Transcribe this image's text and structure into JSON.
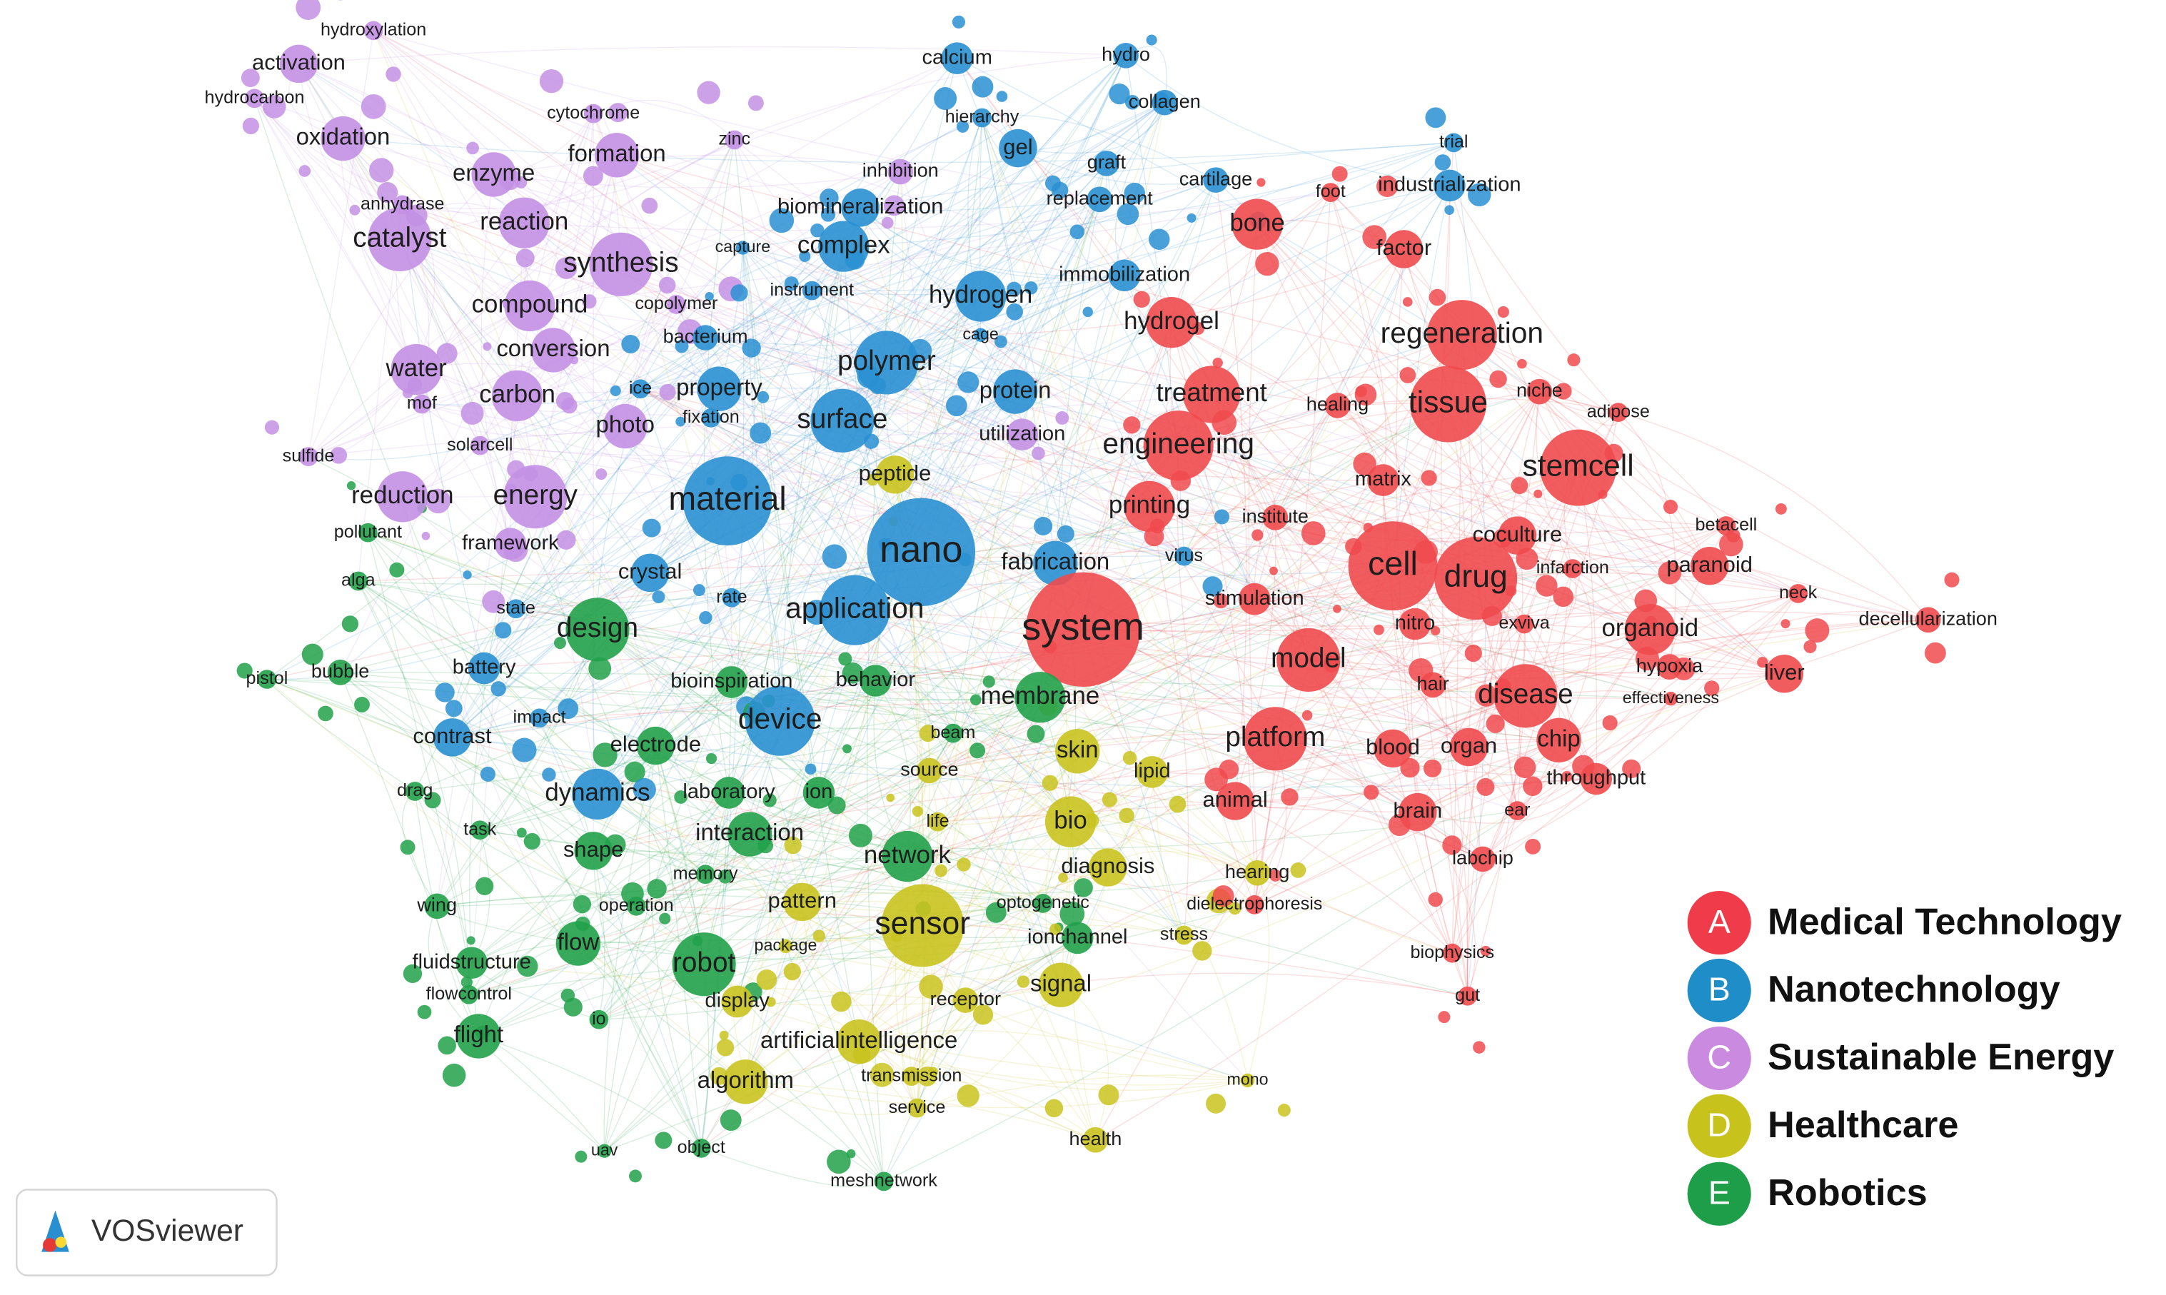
{
  "legend": [
    {
      "letter": "A",
      "label": "Medical Technology",
      "color": "#f03c4a"
    },
    {
      "letter": "B",
      "label": "Nanotechnology",
      "color": "#1f8ec8"
    },
    {
      "letter": "C",
      "label": "Sustainable Energy",
      "color": "#c98ae0"
    },
    {
      "letter": "D",
      "label": "Healthcare",
      "color": "#c8c21c"
    },
    {
      "letter": "E",
      "label": "Robotics",
      "color": "#1f9e4a"
    }
  ],
  "logo": "VOSviewer",
  "nodes": [
    {
      "label": "hydroxylation",
      "cluster": 2
    },
    {
      "label": "activation",
      "cluster": 2
    },
    {
      "label": "hydrocarbon",
      "cluster": 2
    },
    {
      "label": "oxidation",
      "cluster": 2
    },
    {
      "label": "cytochrome",
      "cluster": 2
    },
    {
      "label": "zinc",
      "cluster": 2
    },
    {
      "label": "formation",
      "cluster": 2
    },
    {
      "label": "enzyme",
      "cluster": 2
    },
    {
      "label": "anhydrase",
      "cluster": 2
    },
    {
      "label": "reaction",
      "cluster": 2
    },
    {
      "label": "catalyst",
      "cluster": 2
    },
    {
      "label": "synthesis",
      "cluster": 2
    },
    {
      "label": "compound",
      "cluster": 2
    },
    {
      "label": "copolymer",
      "cluster": 2
    },
    {
      "label": "conversion",
      "cluster": 2
    },
    {
      "label": "water",
      "cluster": 2
    },
    {
      "label": "carbon",
      "cluster": 2
    },
    {
      "label": "mof",
      "cluster": 2
    },
    {
      "label": "sulfide",
      "cluster": 2
    },
    {
      "label": "solarcell",
      "cluster": 2
    },
    {
      "label": "reduction",
      "cluster": 2
    },
    {
      "label": "energy",
      "cluster": 2
    },
    {
      "label": "pollutant",
      "cluster": 4
    },
    {
      "label": "framework",
      "cluster": 2
    },
    {
      "label": "alga",
      "cluster": 4
    },
    {
      "label": "crystal",
      "cluster": 1
    },
    {
      "label": "state",
      "cluster": 1
    },
    {
      "label": "design",
      "cluster": 4
    },
    {
      "label": "battery",
      "cluster": 1
    },
    {
      "label": "pistol",
      "cluster": 4
    },
    {
      "label": "bubble",
      "cluster": 4
    },
    {
      "label": "impact",
      "cluster": 1
    },
    {
      "label": "contrast",
      "cluster": 1
    },
    {
      "label": "electrode",
      "cluster": 4
    },
    {
      "label": "drag",
      "cluster": 4
    },
    {
      "label": "dynamics",
      "cluster": 1
    },
    {
      "label": "task",
      "cluster": 4
    },
    {
      "label": "shape",
      "cluster": 4
    },
    {
      "label": "wing",
      "cluster": 4
    },
    {
      "label": "operation",
      "cluster": 4
    },
    {
      "label": "memory",
      "cluster": 4
    },
    {
      "label": "flow",
      "cluster": 4
    },
    {
      "label": "fluidstructure",
      "cluster": 4
    },
    {
      "label": "flowcontrol",
      "cluster": 4
    },
    {
      "label": "robot",
      "cluster": 4
    },
    {
      "label": "flight",
      "cluster": 4
    },
    {
      "label": "io",
      "cluster": 4
    },
    {
      "label": "package",
      "cluster": 3
    },
    {
      "label": "display",
      "cluster": 3
    },
    {
      "label": "pattern",
      "cluster": 3
    },
    {
      "label": "artificialintelligence",
      "cluster": 3
    },
    {
      "label": "algorithm",
      "cluster": 3
    },
    {
      "label": "transmission",
      "cluster": 3
    },
    {
      "label": "service",
      "cluster": 3
    },
    {
      "label": "uav",
      "cluster": 4
    },
    {
      "label": "object",
      "cluster": 4
    },
    {
      "label": "meshnetwork",
      "cluster": 4
    },
    {
      "label": "health",
      "cluster": 3
    },
    {
      "label": "mono",
      "cluster": 3
    },
    {
      "label": "sensor",
      "cluster": 3
    },
    {
      "label": "network",
      "cluster": 4
    },
    {
      "label": "interaction",
      "cluster": 4
    },
    {
      "label": "laboratory",
      "cluster": 4
    },
    {
      "label": "ion",
      "cluster": 4
    },
    {
      "label": "life",
      "cluster": 3
    },
    {
      "label": "source",
      "cluster": 3
    },
    {
      "label": "beam",
      "cluster": 4
    },
    {
      "label": "device",
      "cluster": 1
    },
    {
      "label": "bioinspiration",
      "cluster": 4
    },
    {
      "label": "behavior",
      "cluster": 4
    },
    {
      "label": "application",
      "cluster": 1
    },
    {
      "label": "rate",
      "cluster": 1
    },
    {
      "label": "material",
      "cluster": 1
    },
    {
      "label": "nano",
      "cluster": 1
    },
    {
      "label": "fabrication",
      "cluster": 1
    },
    {
      "label": "system",
      "cluster": 0
    },
    {
      "label": "membrane",
      "cluster": 4
    },
    {
      "label": "skin",
      "cluster": 3
    },
    {
      "label": "lipid",
      "cluster": 3
    },
    {
      "label": "bio",
      "cluster": 3
    },
    {
      "label": "diagnosis",
      "cluster": 3
    },
    {
      "label": "optogenetic",
      "cluster": 4
    },
    {
      "label": "ionchannel",
      "cluster": 4
    },
    {
      "label": "signal",
      "cluster": 3
    },
    {
      "label": "receptor",
      "cluster": 3
    },
    {
      "label": "stress",
      "cluster": 3
    },
    {
      "label": "dielectrophoresis",
      "cluster": 0
    },
    {
      "label": "hearing",
      "cluster": 3
    },
    {
      "label": "animal",
      "cluster": 0
    },
    {
      "label": "platform",
      "cluster": 0
    },
    {
      "label": "model",
      "cluster": 0
    },
    {
      "label": "stimulation",
      "cluster": 0
    },
    {
      "label": "virus",
      "cluster": 1
    },
    {
      "label": "institute",
      "cluster": 0
    },
    {
      "label": "printing",
      "cluster": 0
    },
    {
      "label": "peptide",
      "cluster": 3
    },
    {
      "label": "photo",
      "cluster": 2
    },
    {
      "label": "fixation",
      "cluster": 1
    },
    {
      "label": "ice",
      "cluster": 1
    },
    {
      "label": "property",
      "cluster": 1
    },
    {
      "label": "bacterium",
      "cluster": 1
    },
    {
      "label": "polymer",
      "cluster": 1
    },
    {
      "label": "surface",
      "cluster": 1
    },
    {
      "label": "utilization",
      "cluster": 2
    },
    {
      "label": "protein",
      "cluster": 1
    },
    {
      "label": "engineering",
      "cluster": 0
    },
    {
      "label": "treatment",
      "cluster": 0
    },
    {
      "label": "hydrogel",
      "cluster": 0
    },
    {
      "label": "hydrogen",
      "cluster": 1
    },
    {
      "label": "cage",
      "cluster": 1
    },
    {
      "label": "instrument",
      "cluster": 1
    },
    {
      "label": "capture",
      "cluster": 1
    },
    {
      "label": "complex",
      "cluster": 1
    },
    {
      "label": "biomineralization",
      "cluster": 1
    },
    {
      "label": "inhibition",
      "cluster": 2
    },
    {
      "label": "hierarchy",
      "cluster": 1
    },
    {
      "label": "calcium",
      "cluster": 1
    },
    {
      "label": "hydro",
      "cluster": 1
    },
    {
      "label": "collagen",
      "cluster": 1
    },
    {
      "label": "gel",
      "cluster": 1
    },
    {
      "label": "graft",
      "cluster": 1
    },
    {
      "label": "replacement",
      "cluster": 1
    },
    {
      "label": "cartilage",
      "cluster": 1
    },
    {
      "label": "immobilization",
      "cluster": 1
    },
    {
      "label": "bone",
      "cluster": 0
    },
    {
      "label": "foot",
      "cluster": 0
    },
    {
      "label": "trial",
      "cluster": 1
    },
    {
      "label": "industrialization",
      "cluster": 1
    },
    {
      "label": "factor",
      "cluster": 0
    },
    {
      "label": "regeneration",
      "cluster": 0
    },
    {
      "label": "healing",
      "cluster": 0
    },
    {
      "label": "tissue",
      "cluster": 0
    },
    {
      "label": "niche",
      "cluster": 0
    },
    {
      "label": "adipose",
      "cluster": 0
    },
    {
      "label": "stemcell",
      "cluster": 0
    },
    {
      "label": "matrix",
      "cluster": 0
    },
    {
      "label": "coculture",
      "cluster": 0
    },
    {
      "label": "betacell",
      "cluster": 0
    },
    {
      "label": "cell",
      "cluster": 0
    },
    {
      "label": "drug",
      "cluster": 0
    },
    {
      "label": "infarction",
      "cluster": 0
    },
    {
      "label": "paranoid",
      "cluster": 0
    },
    {
      "label": "neck",
      "cluster": 0
    },
    {
      "label": "nitro",
      "cluster": 0
    },
    {
      "label": "exviva",
      "cluster": 0
    },
    {
      "label": "organoid",
      "cluster": 0
    },
    {
      "label": "decellularization",
      "cluster": 0
    },
    {
      "label": "hair",
      "cluster": 0
    },
    {
      "label": "hypoxia",
      "cluster": 0
    },
    {
      "label": "liver",
      "cluster": 0
    },
    {
      "label": "disease",
      "cluster": 0
    },
    {
      "label": "effectiveness",
      "cluster": 0
    },
    {
      "label": "blood",
      "cluster": 0
    },
    {
      "label": "organ",
      "cluster": 0
    },
    {
      "label": "chip",
      "cluster": 0
    },
    {
      "label": "throughput",
      "cluster": 0
    },
    {
      "label": "brain",
      "cluster": 0
    },
    {
      "label": "ear",
      "cluster": 0
    },
    {
      "label": "labchip",
      "cluster": 0
    },
    {
      "label": "biophysics",
      "cluster": 0
    },
    {
      "label": "gut",
      "cluster": 0
    }
  ]
}
